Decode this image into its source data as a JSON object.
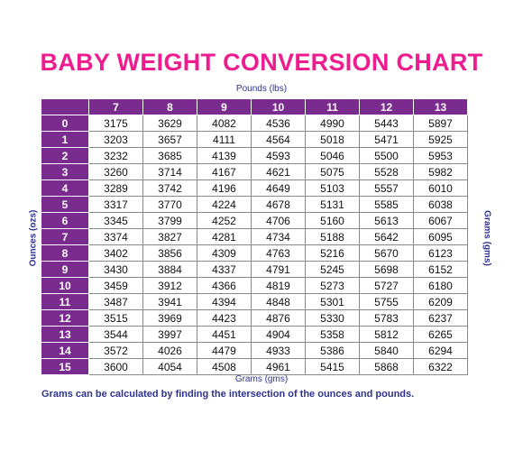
{
  "title": "BABY WEIGHT CONVERSION CHART",
  "pounds_label": "Pounds (lbs)",
  "ounces_label": "Ounces (ozs)",
  "grams_side_label": "Grams (gms)",
  "grams_bottom_label": "Grams (gms)",
  "note": "Grams can be calculated by finding the intersection of the ounces and pounds.",
  "colors": {
    "title": "#ee1c8f",
    "header_bg": "#7a2c8e",
    "label_text": "#2e3192"
  },
  "pounds": [
    "7",
    "8",
    "9",
    "10",
    "11",
    "12",
    "13"
  ],
  "rows": [
    {
      "oz": "0",
      "grams": [
        "3175",
        "3629",
        "4082",
        "4536",
        "4990",
        "5443",
        "5897"
      ]
    },
    {
      "oz": "1",
      "grams": [
        "3203",
        "3657",
        "4111",
        "4564",
        "5018",
        "5471",
        "5925"
      ]
    },
    {
      "oz": "2",
      "grams": [
        "3232",
        "3685",
        "4139",
        "4593",
        "5046",
        "5500",
        "5953"
      ]
    },
    {
      "oz": "3",
      "grams": [
        "3260",
        "3714",
        "4167",
        "4621",
        "5075",
        "5528",
        "5982"
      ]
    },
    {
      "oz": "4",
      "grams": [
        "3289",
        "3742",
        "4196",
        "4649",
        "5103",
        "5557",
        "6010"
      ]
    },
    {
      "oz": "5",
      "grams": [
        "3317",
        "3770",
        "4224",
        "4678",
        "5131",
        "5585",
        "6038"
      ]
    },
    {
      "oz": "6",
      "grams": [
        "3345",
        "3799",
        "4252",
        "4706",
        "5160",
        "5613",
        "6067"
      ]
    },
    {
      "oz": "7",
      "grams": [
        "3374",
        "3827",
        "4281",
        "4734",
        "5188",
        "5642",
        "6095"
      ]
    },
    {
      "oz": "8",
      "grams": [
        "3402",
        "3856",
        "4309",
        "4763",
        "5216",
        "5670",
        "6123"
      ]
    },
    {
      "oz": "9",
      "grams": [
        "3430",
        "3884",
        "4337",
        "4791",
        "5245",
        "5698",
        "6152"
      ]
    },
    {
      "oz": "10",
      "grams": [
        "3459",
        "3912",
        "4366",
        "4819",
        "5273",
        "5727",
        "6180"
      ]
    },
    {
      "oz": "11",
      "grams": [
        "3487",
        "3941",
        "4394",
        "4848",
        "5301",
        "5755",
        "6209"
      ]
    },
    {
      "oz": "12",
      "grams": [
        "3515",
        "3969",
        "4423",
        "4876",
        "5330",
        "5783",
        "6237"
      ]
    },
    {
      "oz": "13",
      "grams": [
        "3544",
        "3997",
        "4451",
        "4904",
        "5358",
        "5812",
        "6265"
      ]
    },
    {
      "oz": "14",
      "grams": [
        "3572",
        "4026",
        "4479",
        "4933",
        "5386",
        "5840",
        "6294"
      ]
    },
    {
      "oz": "15",
      "grams": [
        "3600",
        "4054",
        "4508",
        "4961",
        "5415",
        "5868",
        "6322"
      ]
    }
  ]
}
